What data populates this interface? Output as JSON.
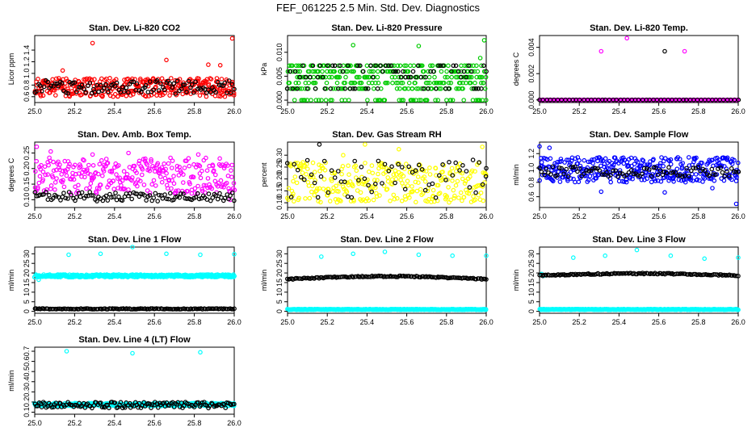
{
  "page_title": "FEF_061225  2.5 Min. Std. Dev. Diagnostics",
  "chart_data": [
    {
      "type": "scatter",
      "title": "Stan. Dev. Li-820 CO2",
      "ylabel": "Licor ppm",
      "xlim": [
        25.0,
        26.0
      ],
      "ylim": [
        0.5,
        1.65
      ],
      "xticks": [
        25.0,
        25.2,
        25.4,
        25.6,
        25.8,
        26.0
      ],
      "xtick_labels": [
        "25.0",
        "25.2",
        "25.4",
        "25.6",
        "25.8",
        "26.0"
      ],
      "yticks": [
        0.6,
        0.8,
        1.0,
        1.2,
        1.4
      ],
      "ytick_labels": [
        "0.6",
        "0.8",
        "1.0",
        "1.2",
        "1.4"
      ],
      "series": [
        {
          "name": "red",
          "color": "#ff0000",
          "gen": {
            "kind": "band",
            "n": 340,
            "lo": 0.6,
            "hi": 0.92,
            "seed": 11
          },
          "extra": [
            [
              25.29,
              1.52
            ],
            [
              25.93,
              1.14
            ],
            [
              25.66,
              1.23
            ],
            [
              25.99,
              1.6
            ],
            [
              25.87,
              1.15
            ],
            [
              25.14,
              1.05
            ]
          ]
        },
        {
          "name": "black",
          "color": "#000000",
          "gen": {
            "kind": "band",
            "n": 110,
            "lo": 0.65,
            "hi": 0.88,
            "seed": 12
          }
        }
      ]
    },
    {
      "type": "scatter",
      "title": "Stan. Dev. Li-820 Pressure",
      "ylabel": "kPa",
      "xlim": [
        25.0,
        26.0
      ],
      "ylim": [
        -0.0005,
        0.0135
      ],
      "xticks": [
        25.0,
        25.2,
        25.4,
        25.6,
        25.8,
        26.0
      ],
      "xtick_labels": [
        "25.0",
        "25.2",
        "25.4",
        "25.6",
        "25.8",
        "26.0"
      ],
      "yticks": [
        0.0,
        0.005,
        0.01
      ],
      "ytick_labels": [
        "0.000",
        "0.005",
        "0.010"
      ],
      "series": [
        {
          "name": "green",
          "color": "#00cc00",
          "gen": {
            "kind": "levels",
            "n": 380,
            "levels": [
              0.0,
              0.0024,
              0.0036,
              0.0048,
              0.006,
              0.0072
            ],
            "seed": 21
          },
          "extra": [
            [
              25.33,
              0.0115
            ],
            [
              25.66,
              0.0113
            ],
            [
              25.99,
              0.0125
            ],
            [
              25.97,
              0.0088
            ]
          ]
        },
        {
          "name": "black",
          "color": "#000000",
          "gen": {
            "kind": "levels",
            "n": 80,
            "levels": [
              0.0024,
              0.0048,
              0.006,
              0.0072
            ],
            "seed": 22
          }
        }
      ]
    },
    {
      "type": "scatter",
      "title": "Stan. Dev. Li-820 Temp.",
      "ylabel": "degrees C",
      "xlim": [
        25.0,
        26.0
      ],
      "ylim": [
        -0.0002,
        0.0049
      ],
      "xticks": [
        25.0,
        25.2,
        25.4,
        25.6,
        25.8,
        26.0
      ],
      "xtick_labels": [
        "25.0",
        "25.2",
        "25.4",
        "25.6",
        "25.8",
        "26.0"
      ],
      "yticks": [
        0.0,
        0.002,
        0.004
      ],
      "ytick_labels": [
        "0.000",
        "0.002",
        "0.004"
      ],
      "series": [
        {
          "name": "magenta",
          "color": "#ff00ff",
          "gen": {
            "kind": "const",
            "n": 160,
            "y": 0.0,
            "seed": 31
          },
          "extra": [
            [
              25.31,
              0.0037
            ],
            [
              25.44,
              0.0047
            ],
            [
              25.73,
              0.0037
            ]
          ]
        },
        {
          "name": "black",
          "color": "#000000",
          "gen": {
            "kind": "const",
            "n": 55,
            "y": 0.0,
            "seed": 32
          },
          "extra": [
            [
              25.63,
              0.0037
            ]
          ]
        }
      ]
    },
    {
      "type": "scatter",
      "title": "Stan. Dev. Amb. Box Temp.",
      "ylabel": "degrees C",
      "xlim": [
        25.0,
        26.0
      ],
      "ylim": [
        0.075,
        0.285
      ],
      "xticks": [
        25.0,
        25.2,
        25.4,
        25.6,
        25.8,
        26.0
      ],
      "xtick_labels": [
        "25.0",
        "25.2",
        "25.4",
        "25.6",
        "25.8",
        "26.0"
      ],
      "yticks": [
        0.1,
        0.15,
        0.2,
        0.25
      ],
      "ytick_labels": [
        "0.10",
        "0.15",
        "0.20",
        "0.25"
      ],
      "series": [
        {
          "name": "magenta",
          "color": "#ff00ff",
          "gen": {
            "kind": "band",
            "n": 300,
            "lo": 0.12,
            "hi": 0.235,
            "seed": 41
          },
          "extra": [
            [
              25.01,
              0.27
            ],
            [
              25.08,
              0.255
            ],
            [
              25.47,
              0.25
            ],
            [
              25.29,
              0.245
            ],
            [
              25.98,
              0.1
            ],
            [
              25.82,
              0.245
            ]
          ]
        },
        {
          "name": "black",
          "color": "#000000",
          "gen": {
            "kind": "band",
            "n": 110,
            "lo": 0.095,
            "hi": 0.125,
            "seed": 42
          }
        }
      ]
    },
    {
      "type": "scatter",
      "title": "Stan. Dev. Gas Stream RH",
      "ylabel": "percent",
      "xlim": [
        25.0,
        26.0
      ],
      "ylim": [
        0.08,
        0.355
      ],
      "xticks": [
        25.0,
        25.2,
        25.4,
        25.6,
        25.8,
        26.0
      ],
      "xtick_labels": [
        "25.0",
        "25.2",
        "25.4",
        "25.6",
        "25.8",
        "26.0"
      ],
      "yticks": [
        0.1,
        0.15,
        0.2,
        0.25,
        0.3
      ],
      "ytick_labels": [
        "0.10",
        "0.15",
        "0.20",
        "0.25",
        "0.30"
      ],
      "series": [
        {
          "name": "yellow",
          "color": "#ffff00",
          "gen": {
            "kind": "band",
            "n": 300,
            "lo": 0.1,
            "hi": 0.27,
            "seed": 51
          },
          "extra": [
            [
              25.39,
              0.345
            ],
            [
              25.98,
              0.335
            ],
            [
              25.56,
              0.325
            ],
            [
              25.28,
              0.3
            ]
          ]
        },
        {
          "name": "black",
          "color": "#000000",
          "gen": {
            "kind": "band",
            "n": 60,
            "lo": 0.12,
            "hi": 0.28,
            "seed": 52
          },
          "extra": [
            [
              25.16,
              0.345
            ],
            [
              26.0,
              0.245
            ]
          ]
        }
      ]
    },
    {
      "type": "scatter",
      "title": "Stan. Dev. Sample Flow",
      "ylabel": "ml/min",
      "xlim": [
        25.0,
        26.0
      ],
      "ylim": [
        0.45,
        1.36
      ],
      "xticks": [
        25.0,
        25.2,
        25.4,
        25.6,
        25.8,
        26.0
      ],
      "xtick_labels": [
        "25.0",
        "25.2",
        "25.4",
        "25.6",
        "25.8",
        "26.0"
      ],
      "yticks": [
        0.6,
        0.8,
        1.0,
        1.2
      ],
      "ytick_labels": [
        "0.6",
        "0.8",
        "1.0",
        "1.2"
      ],
      "series": [
        {
          "name": "blue",
          "color": "#0000ff",
          "gen": {
            "kind": "band",
            "n": 360,
            "lo": 0.8,
            "hi": 1.15,
            "seed": 61
          },
          "extra": [
            [
              25.0,
              1.3
            ],
            [
              25.05,
              1.28
            ],
            [
              25.31,
              0.67
            ],
            [
              25.63,
              0.66
            ],
            [
              25.99,
              0.5
            ],
            [
              25.87,
              0.72
            ]
          ]
        },
        {
          "name": "black",
          "color": "#000000",
          "gen": {
            "kind": "band",
            "n": 90,
            "lo": 0.88,
            "hi": 1.02,
            "seed": 62
          }
        }
      ]
    },
    {
      "type": "scatter",
      "title": "Stan. Dev. Line 1 Flow",
      "ylabel": "ml/min",
      "xlim": [
        25.0,
        26.0
      ],
      "ylim": [
        -1,
        33.5
      ],
      "xticks": [
        25.0,
        25.2,
        25.4,
        25.6,
        25.8,
        26.0
      ],
      "xtick_labels": [
        "25.0",
        "25.2",
        "25.4",
        "25.6",
        "25.8",
        "26.0"
      ],
      "yticks": [
        0,
        5,
        10,
        15,
        20,
        25,
        30
      ],
      "ytick_labels": [
        "0",
        "5",
        "10",
        "15",
        "20",
        "25",
        "30"
      ],
      "series": [
        {
          "name": "cyan",
          "color": "#00ffff",
          "gen": {
            "kind": "dense",
            "n": 420,
            "y": 18.5,
            "amp": 0.7,
            "seed": 71
          },
          "extra": [
            [
              25.17,
              29.5
            ],
            [
              25.33,
              30.0
            ],
            [
              25.49,
              33.5
            ],
            [
              25.66,
              30.0
            ],
            [
              25.83,
              29.5
            ],
            [
              26.0,
              29.8
            ],
            [
              25.02,
              16.5
            ]
          ]
        },
        {
          "name": "black",
          "color": "#000000",
          "gen": {
            "kind": "dense",
            "n": 140,
            "y": 1.3,
            "amp": 0.2,
            "seed": 72
          }
        }
      ]
    },
    {
      "type": "scatter",
      "title": "Stan. Dev. Line 2 Flow",
      "ylabel": "ml/min",
      "xlim": [
        25.0,
        26.0
      ],
      "ylim": [
        -1,
        33.5
      ],
      "xticks": [
        25.0,
        25.2,
        25.4,
        25.6,
        25.8,
        26.0
      ],
      "xtick_labels": [
        "25.0",
        "25.2",
        "25.4",
        "25.6",
        "25.8",
        "26.0"
      ],
      "yticks": [
        0,
        5,
        10,
        15,
        20,
        25,
        30
      ],
      "ytick_labels": [
        "0",
        "5",
        "10",
        "15",
        "20",
        "25",
        "30"
      ],
      "series": [
        {
          "name": "cyan",
          "color": "#00ffff",
          "gen": {
            "kind": "dense",
            "n": 420,
            "y": 1.0,
            "amp": 0.2,
            "seed": 81
          },
          "extra": [
            [
              25.17,
              28.5
            ],
            [
              25.33,
              30.0
            ],
            [
              25.49,
              31.0
            ],
            [
              25.66,
              29.5
            ],
            [
              25.83,
              29.0
            ],
            [
              26.0,
              29.0
            ]
          ]
        },
        {
          "name": "black",
          "color": "#000000",
          "gen": {
            "kind": "arc",
            "n": 140,
            "y": 17.5,
            "amp": 1.5,
            "seed": 82
          }
        }
      ]
    },
    {
      "type": "scatter",
      "title": "Stan. Dev. Line 3 Flow",
      "ylabel": "ml/min",
      "xlim": [
        25.0,
        26.0
      ],
      "ylim": [
        -1,
        33.5
      ],
      "xticks": [
        25.0,
        25.2,
        25.4,
        25.6,
        25.8,
        26.0
      ],
      "xtick_labels": [
        "25.0",
        "25.2",
        "25.4",
        "25.6",
        "25.8",
        "26.0"
      ],
      "yticks": [
        0,
        5,
        10,
        15,
        20,
        25,
        30
      ],
      "ytick_labels": [
        "0",
        "5",
        "10",
        "15",
        "20",
        "25",
        "30"
      ],
      "series": [
        {
          "name": "cyan",
          "color": "#00ffff",
          "gen": {
            "kind": "dense",
            "n": 420,
            "y": 1.0,
            "amp": 0.2,
            "seed": 91
          },
          "extra": [
            [
              25.17,
              28.0
            ],
            [
              25.33,
              29.0
            ],
            [
              25.49,
              32.0
            ],
            [
              25.66,
              29.0
            ],
            [
              25.83,
              27.5
            ],
            [
              26.0,
              28.0
            ],
            [
              25.01,
              19.5
            ],
            [
              25.02,
              18.5
            ]
          ]
        },
        {
          "name": "black",
          "color": "#000000",
          "gen": {
            "kind": "arc",
            "n": 140,
            "y": 19.2,
            "amp": 1.0,
            "seed": 92
          }
        }
      ]
    },
    {
      "type": "scatter",
      "title": "Stan. Dev. Line 4 (LT) Flow",
      "ylabel": "ml/min",
      "xlim": [
        25.0,
        26.0
      ],
      "ylim": [
        0.08,
        0.74
      ],
      "xticks": [
        25.0,
        25.2,
        25.4,
        25.6,
        25.8,
        26.0
      ],
      "xtick_labels": [
        "25.0",
        "25.2",
        "25.4",
        "25.6",
        "25.8",
        "26.0"
      ],
      "yticks": [
        0.1,
        0.2,
        0.3,
        0.4,
        0.5,
        0.6,
        0.7
      ],
      "ytick_labels": [
        "0.1",
        "0.2",
        "0.3",
        "0.4",
        "0.5",
        "0.6",
        "0.7"
      ],
      "series": [
        {
          "name": "cyan",
          "color": "#00ffff",
          "gen": {
            "kind": "dense",
            "n": 420,
            "y": 0.175,
            "amp": 0.015,
            "seed": 101
          },
          "extra": [
            [
              25.16,
              0.7
            ],
            [
              25.49,
              0.68
            ],
            [
              25.83,
              0.69
            ]
          ]
        },
        {
          "name": "black",
          "color": "#000000",
          "gen": {
            "kind": "band",
            "n": 140,
            "lo": 0.14,
            "hi": 0.2,
            "seed": 102
          }
        }
      ]
    }
  ]
}
